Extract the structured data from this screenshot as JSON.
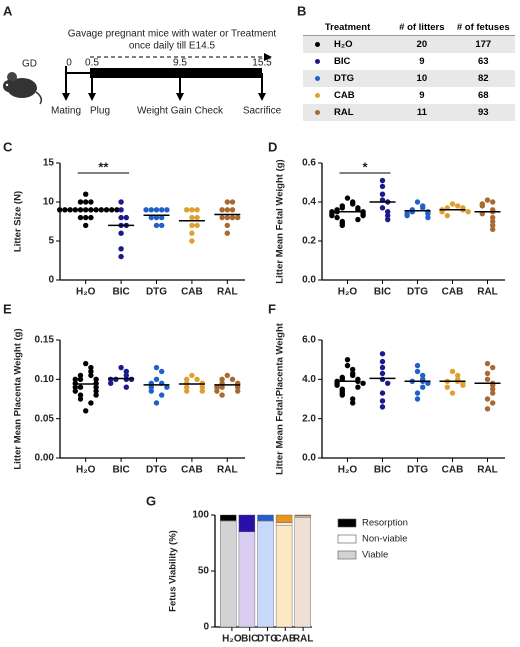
{
  "timeline": {
    "panel": "A",
    "instruction": [
      "Gavage pregnant mice  with water or Treatment",
      "once daily till E14.5"
    ],
    "gd_label": "GD",
    "days": [
      "0",
      "0.5",
      "9.5",
      "15.5"
    ],
    "events": [
      "Mating",
      "Plug",
      "Weight Gain Check",
      "Sacrifice"
    ]
  },
  "table": {
    "panel": "B",
    "header": [
      "Treatment",
      "# of litters",
      "# of fetuses"
    ],
    "rows": [
      [
        "H₂O",
        20,
        177
      ],
      [
        "BIC",
        9,
        63
      ],
      [
        "DTG",
        10,
        82
      ],
      [
        "CAB",
        9,
        68
      ],
      [
        "RAL",
        11,
        93
      ]
    ],
    "row_colors": [
      "#000000",
      "#1a1a8c",
      "#2060c8",
      "#e0a030",
      "#a86a30"
    ]
  },
  "chart_data": [
    {
      "type": "dot",
      "panel": "C",
      "ylabel": "Litter Size (N)",
      "categories": [
        "H₂O",
        "BIC",
        "DTG",
        "CAB",
        "RAL"
      ],
      "colors": [
        "#000000",
        "#1a1a8c",
        "#2060c8",
        "#e0a030",
        "#a86a30"
      ],
      "points": [
        [
          11,
          10,
          10,
          10,
          9,
          9,
          9,
          9,
          9,
          9,
          9,
          9,
          9,
          9,
          9,
          9,
          8,
          8,
          8,
          7
        ],
        [
          10,
          9,
          8,
          8,
          7,
          7,
          6,
          4,
          3
        ],
        [
          9,
          9,
          9,
          9,
          9,
          8,
          8,
          8,
          7,
          7
        ],
        [
          9,
          9,
          9,
          8,
          8,
          7,
          7,
          6,
          5
        ],
        [
          10,
          10,
          9,
          9,
          9,
          8,
          8,
          8,
          8,
          7,
          6
        ]
      ],
      "means": [
        9,
        7,
        8.3,
        7.6,
        8.4
      ],
      "annotation": "**",
      "ylim": [
        0,
        15
      ],
      "yticks": [
        0,
        5,
        10,
        15
      ]
    },
    {
      "type": "dot",
      "panel": "D",
      "ylabel": "Litter Mean Fetal Weight (g)",
      "categories": [
        "H₂O",
        "BIC",
        "DTG",
        "CAB",
        "RAL"
      ],
      "colors": [
        "#000000",
        "#1a1a8c",
        "#2060c8",
        "#e0a030",
        "#a86a30"
      ],
      "points": [
        [
          0.42,
          0.4,
          0.39,
          0.38,
          0.37,
          0.37,
          0.36,
          0.36,
          0.35,
          0.35,
          0.35,
          0.34,
          0.34,
          0.33,
          0.33,
          0.32,
          0.31,
          0.3,
          0.29,
          0.28
        ],
        [
          0.51,
          0.48,
          0.44,
          0.41,
          0.4,
          0.37,
          0.35,
          0.33,
          0.31
        ],
        [
          0.4,
          0.38,
          0.37,
          0.36,
          0.35,
          0.35,
          0.34,
          0.34,
          0.33,
          0.32
        ],
        [
          0.39,
          0.38,
          0.37,
          0.37,
          0.36,
          0.36,
          0.35,
          0.35,
          0.33
        ],
        [
          0.41,
          0.4,
          0.39,
          0.38,
          0.36,
          0.35,
          0.34,
          0.32,
          0.3,
          0.28,
          0.26
        ]
      ],
      "means": [
        0.35,
        0.4,
        0.355,
        0.36,
        0.35
      ],
      "annotation": "*",
      "ylim": [
        0,
        0.6
      ],
      "yticks": [
        {
          "value": 0,
          "label": "0.0"
        },
        0.2,
        0.4,
        0.6
      ]
    },
    {
      "type": "dot",
      "panel": "E",
      "ylabel": "Litter Mean Placenta Weight (g)",
      "categories": [
        "H₂O",
        "BIC",
        "DTG",
        "CAB",
        "RAL"
      ],
      "colors": [
        "#000000",
        "#1a1a8c",
        "#2060c8",
        "#e0a030",
        "#a86a30"
      ],
      "points": [
        [
          0.12,
          0.115,
          0.11,
          0.105,
          0.105,
          0.1,
          0.1,
          0.1,
          0.095,
          0.095,
          0.09,
          0.09,
          0.09,
          0.085,
          0.085,
          0.08,
          0.08,
          0.075,
          0.07,
          0.06
        ],
        [
          0.115,
          0.11,
          0.105,
          0.1,
          0.1,
          0.1,
          0.1,
          0.095,
          0.09
        ],
        [
          0.115,
          0.11,
          0.1,
          0.095,
          0.095,
          0.09,
          0.09,
          0.085,
          0.08,
          0.07
        ],
        [
          0.105,
          0.1,
          0.1,
          0.095,
          0.095,
          0.09,
          0.09,
          0.085,
          0.085
        ],
        [
          0.105,
          0.1,
          0.1,
          0.095,
          0.095,
          0.09,
          0.09,
          0.09,
          0.085,
          0.085,
          0.08
        ]
      ],
      "means": [
        0.094,
        0.101,
        0.093,
        0.094,
        0.093
      ],
      "ylim": [
        0,
        0.15
      ],
      "yticks": [
        {
          "value": 0,
          "label": "0.00"
        },
        {
          "value": 0.05,
          "label": "0.05"
        },
        {
          "value": 0.1,
          "label": "0.10"
        },
        {
          "value": 0.15,
          "label": "0.15"
        }
      ]
    },
    {
      "type": "dot",
      "panel": "F",
      "ylabel": "Litter Mean Fetal:Placenta Weight",
      "categories": [
        "H₂O",
        "BIC",
        "DTG",
        "CAB",
        "RAL"
      ],
      "colors": [
        "#000000",
        "#1a1a8c",
        "#2060c8",
        "#e0a030",
        "#a86a30"
      ],
      "points": [
        [
          5.0,
          4.7,
          4.5,
          4.3,
          4.2,
          4.1,
          4.0,
          4.0,
          3.9,
          3.9,
          3.8,
          3.8,
          3.7,
          3.6,
          3.5,
          3.4,
          3.3,
          3.2,
          3.0,
          2.8
        ],
        [
          5.3,
          4.9,
          4.6,
          4.3,
          4.0,
          3.8,
          3.3,
          2.9,
          2.6
        ],
        [
          4.7,
          4.4,
          4.2,
          4.0,
          3.9,
          3.9,
          3.8,
          3.6,
          3.3,
          3.0
        ],
        [
          4.4,
          4.2,
          4.0,
          3.9,
          3.9,
          3.8,
          3.7,
          3.6,
          3.3
        ],
        [
          4.8,
          4.6,
          4.3,
          4.0,
          3.8,
          3.7,
          3.5,
          3.3,
          3.0,
          2.8,
          2.5
        ]
      ],
      "means": [
        3.9,
        4.05,
        3.9,
        3.9,
        3.8
      ],
      "ylim": [
        0,
        6
      ],
      "yticks": [
        {
          "value": 0,
          "label": "0.0"
        },
        {
          "value": 2,
          "label": "2.0"
        },
        {
          "value": 4,
          "label": "4.0"
        },
        {
          "value": 6,
          "label": "6.0"
        }
      ]
    },
    {
      "type": "stacked-bar",
      "panel": "G",
      "ylabel": "Fetus Viability  (%)",
      "categories": [
        "H₂O",
        "BIC",
        "DTG",
        "CAB",
        "RAL"
      ],
      "series": [
        {
          "name": "Resorption",
          "color": "#000000",
          "values": [
            5,
            15,
            5,
            7,
            1
          ]
        },
        {
          "name": "Non-viable",
          "color": "#ffffff",
          "values": [
            1,
            0,
            1,
            2,
            1
          ]
        },
        {
          "name": "Viable",
          "color": "#d3d3d3",
          "values": [
            94,
            85,
            94,
            91,
            98
          ]
        }
      ],
      "category_colors": [
        "#000000",
        "#2a0fa8",
        "#1e5fd8",
        "#e8961c",
        "#a0704a"
      ],
      "category_fill_colors": [
        "#d3d3d3",
        "#d8cdf0",
        "#c6d9fb",
        "#fde8c4",
        "#f0dfd4"
      ],
      "ylim": [
        0,
        100
      ],
      "yticks": [
        0,
        50,
        100
      ]
    }
  ]
}
